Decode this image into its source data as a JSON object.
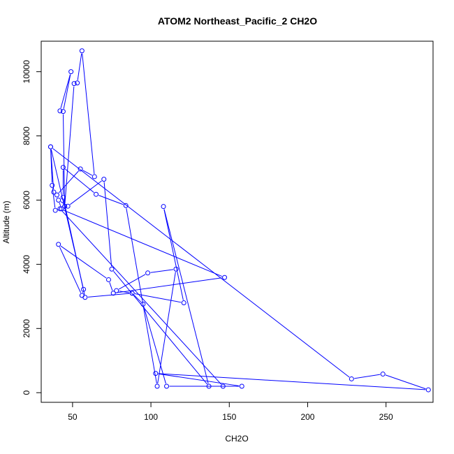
{
  "chart_data": {
    "type": "line",
    "title": "ATOM2 Northeast_Pacific_2 CH2O",
    "xlabel": "CH2O",
    "ylabel": "Altitude (m)",
    "xlim": [
      30,
      280
    ],
    "ylim": [
      -300,
      10950
    ],
    "xticks": [
      50,
      100,
      150,
      200,
      250
    ],
    "yticks": [
      0,
      2000,
      4000,
      6000,
      8000,
      10000
    ],
    "grid": false,
    "legend": "none",
    "markers": "open-circle",
    "series_color": "#0000ff",
    "series": [
      {
        "x": [
          42,
          49,
          44,
          45,
          51,
          53,
          56,
          64,
          55,
          40,
          38,
          36,
          37,
          39,
          43,
          41,
          47,
          70,
          75,
          137,
          108,
          121,
          88,
          78,
          98,
          116,
          104,
          84,
          65,
          44,
          44,
          58,
          88,
          95,
          110,
          158,
          103,
          277,
          248,
          228,
          36,
          57,
          56,
          41,
          73,
          76,
          147,
          42,
          146
        ],
        "y": [
          8780,
          10000,
          8760,
          5810,
          9630,
          9650,
          10650,
          6730,
          6970,
          6160,
          6250,
          7660,
          6460,
          5680,
          5730,
          6000,
          5810,
          6650,
          3850,
          200,
          5800,
          2800,
          3100,
          3180,
          3730,
          3850,
          200,
          5830,
          6180,
          7020,
          6090,
          2970,
          3100,
          2760,
          200,
          200,
          600,
          90,
          580,
          430,
          7660,
          3220,
          3030,
          4620,
          3520,
          3100,
          3590,
          5730,
          200
        ]
      }
    ]
  }
}
